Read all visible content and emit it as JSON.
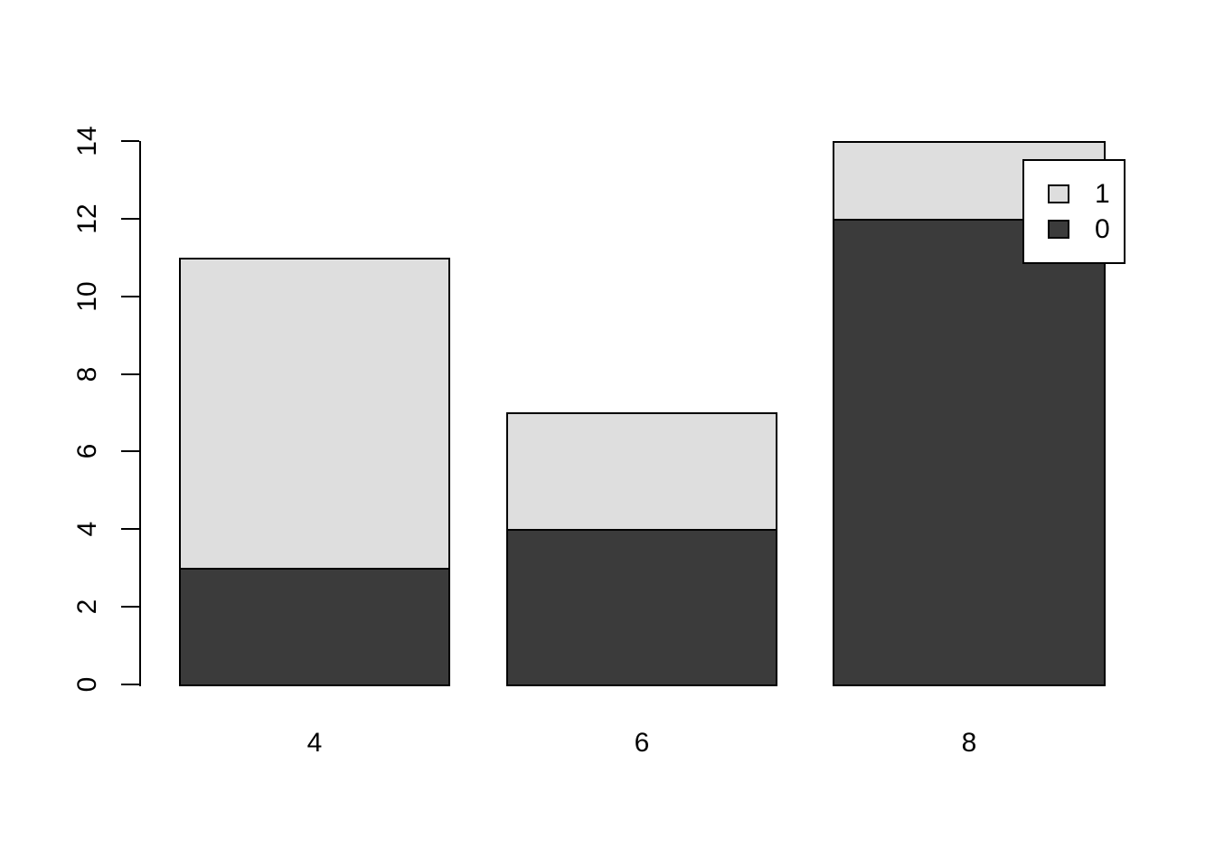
{
  "chart_data": {
    "type": "bar",
    "stacked": true,
    "orientation": "vertical",
    "title": "",
    "xlabel": "",
    "ylabel": "",
    "categories": [
      "4",
      "6",
      "8"
    ],
    "series": [
      {
        "name": "0",
        "color": "#3b3b3b",
        "values": [
          3,
          4,
          12
        ]
      },
      {
        "name": "1",
        "color": "#dedede",
        "values": [
          8,
          3,
          2
        ]
      }
    ],
    "stack_totals": [
      11,
      7,
      14
    ],
    "y_axis": {
      "range": [
        0,
        14
      ],
      "tick_step": 2,
      "ticks": [
        0,
        2,
        4,
        6,
        8,
        10,
        12,
        14
      ],
      "tick_label_rotation_deg": 90
    },
    "x_axis": {
      "tick_labels": [
        "4",
        "6",
        "8"
      ],
      "axis_line": false
    },
    "legend": {
      "position": "top-right",
      "entries": [
        {
          "label": "1",
          "color": "#dedede"
        },
        {
          "label": "0",
          "color": "#3b3b3b"
        }
      ]
    },
    "grid": false,
    "background_color": "#ffffff",
    "bar_border_color": "#000000"
  }
}
